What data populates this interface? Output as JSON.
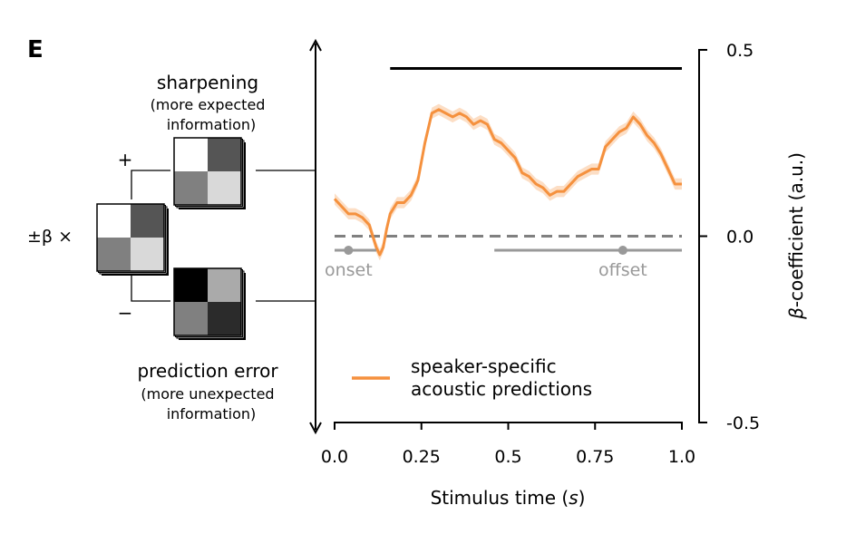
{
  "panel_label": "E",
  "schematic": {
    "beta_label": "±β ×",
    "plus_sign": "+",
    "minus_sign": "−",
    "sharpening": {
      "title": "sharpening",
      "subtitle_line1": "(more expected",
      "subtitle_line2": "information)"
    },
    "prediction_error": {
      "title": "prediction error",
      "subtitle_line1": "(more unexpected",
      "subtitle_line2": "information)"
    },
    "matrices": {
      "base": [
        "#ffffff",
        "#555555",
        "#808080",
        "#d9d9d9"
      ],
      "sharpening": [
        "#ffffff",
        "#555555",
        "#808080",
        "#d9d9d9"
      ],
      "prediction_error": [
        "#000000",
        "#aaaaaa",
        "#808080",
        "#2b2b2b"
      ]
    }
  },
  "chart_data": {
    "type": "line",
    "xlabel": "Stimulus time (s)",
    "ylabel": "β-coefficient (a.u.)",
    "xlim": [
      0,
      1
    ],
    "ylim": [
      -0.5,
      0.5
    ],
    "xticks": [
      0,
      0.25,
      0.5,
      0.75,
      1.0
    ],
    "xtick_labels": [
      "0.0",
      "0.25",
      "0.5",
      "0.75",
      "1.0"
    ],
    "yticks": [
      0.5,
      0,
      -0.5
    ],
    "ytick_labels": [
      "0.5",
      "0.0",
      "-0.5"
    ],
    "grid": false,
    "legend_position": "bottom",
    "series": [
      {
        "name": "speaker-specific acoustic predictions",
        "color": "#f5913e",
        "x": [
          0.0,
          0.02,
          0.04,
          0.06,
          0.08,
          0.1,
          0.11,
          0.12,
          0.13,
          0.14,
          0.15,
          0.16,
          0.18,
          0.2,
          0.22,
          0.24,
          0.25,
          0.26,
          0.28,
          0.3,
          0.32,
          0.34,
          0.36,
          0.38,
          0.4,
          0.42,
          0.44,
          0.46,
          0.48,
          0.5,
          0.52,
          0.54,
          0.56,
          0.58,
          0.6,
          0.62,
          0.64,
          0.66,
          0.68,
          0.7,
          0.72,
          0.74,
          0.76,
          0.78,
          0.8,
          0.82,
          0.84,
          0.86,
          0.88,
          0.9,
          0.92,
          0.94,
          0.96,
          0.98,
          1.0
        ],
        "y": [
          0.1,
          0.08,
          0.06,
          0.06,
          0.05,
          0.03,
          0.0,
          -0.03,
          -0.05,
          -0.03,
          0.02,
          0.06,
          0.09,
          0.09,
          0.11,
          0.15,
          0.2,
          0.25,
          0.33,
          0.34,
          0.33,
          0.32,
          0.33,
          0.32,
          0.3,
          0.31,
          0.3,
          0.26,
          0.25,
          0.23,
          0.21,
          0.17,
          0.16,
          0.14,
          0.13,
          0.11,
          0.12,
          0.12,
          0.14,
          0.16,
          0.17,
          0.18,
          0.18,
          0.24,
          0.26,
          0.28,
          0.29,
          0.32,
          0.3,
          0.27,
          0.25,
          0.22,
          0.18,
          0.14,
          0.14
        ],
        "ci": 0.015
      }
    ],
    "reference_line": {
      "y": 0,
      "style": "dashed",
      "color": "#808080"
    },
    "significance_bar": {
      "x": [
        0.16,
        1.0
      ],
      "y": 0.45,
      "color": "#000000"
    },
    "annotations": [
      {
        "text": "onset",
        "segment": [
          0.0,
          0.12
        ],
        "marker_x": 0.04,
        "y": -0.05,
        "color": "#999999"
      },
      {
        "text": "offset",
        "segment": [
          0.46,
          1.0
        ],
        "marker_x": 0.83,
        "y": -0.05,
        "color": "#999999"
      }
    ]
  }
}
